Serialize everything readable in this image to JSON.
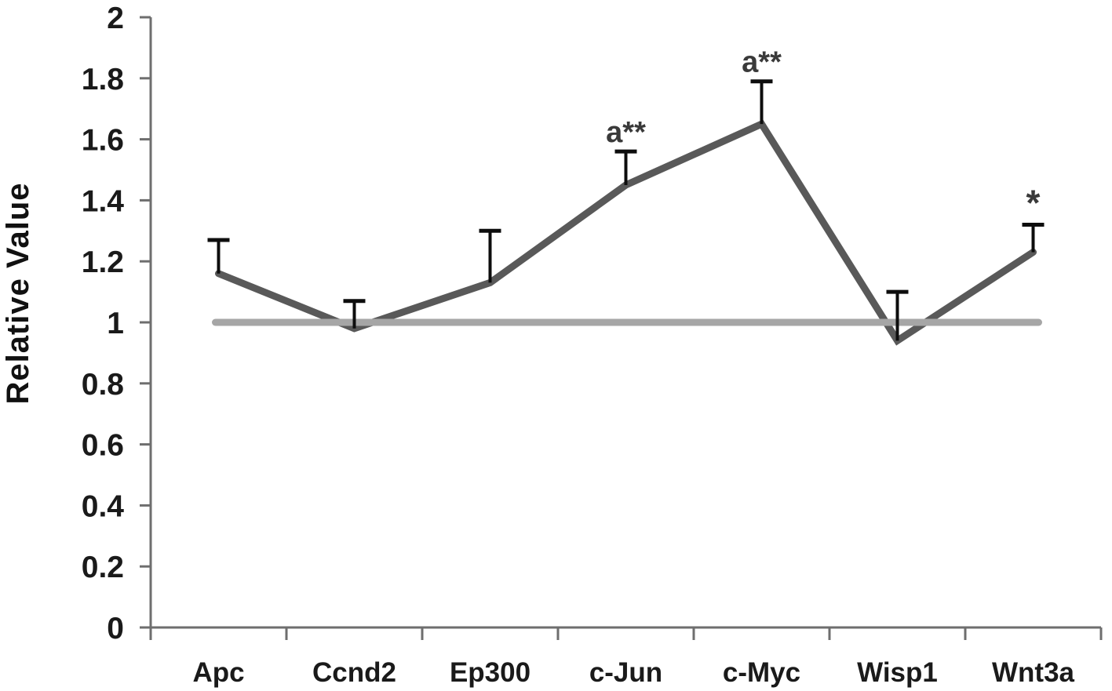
{
  "chart_data": {
    "type": "line",
    "title": "",
    "xlabel": "",
    "ylabel": "Relative Value",
    "categories": [
      "Apc",
      "Ccnd2",
      "Ep300",
      "c-Jun",
      "c-Myc",
      "Wisp1",
      "Wnt3a"
    ],
    "series": [
      {
        "name": "Relative Value",
        "values": [
          1.16,
          0.98,
          1.13,
          1.45,
          1.65,
          0.94,
          1.23
        ],
        "error_plus": [
          0.11,
          0.09,
          0.17,
          0.11,
          0.14,
          0.16,
          0.09
        ],
        "color": "#595959"
      }
    ],
    "reference_line": {
      "value": 1.0,
      "color": "#a6a6a6"
    },
    "annotations": [
      {
        "text": "a**",
        "category_index": 3
      },
      {
        "text": "a**",
        "category_index": 4
      },
      {
        "text": "*",
        "category_index": 6
      }
    ],
    "ylim": [
      0,
      2
    ],
    "ytick_step": 0.2,
    "ytick_labels": [
      "0",
      "0.2",
      "0.4",
      "0.6",
      "0.8",
      "1",
      "1.2",
      "1.4",
      "1.6",
      "1.8",
      "2"
    ],
    "grid": false,
    "legend": null
  },
  "colors": {
    "axis": "#6e6e6e",
    "error_bar": "#0d0d0d",
    "tick_text": "#1a1a1a",
    "annotation_text": "#3a3a3a",
    "background": "#ffffff"
  }
}
